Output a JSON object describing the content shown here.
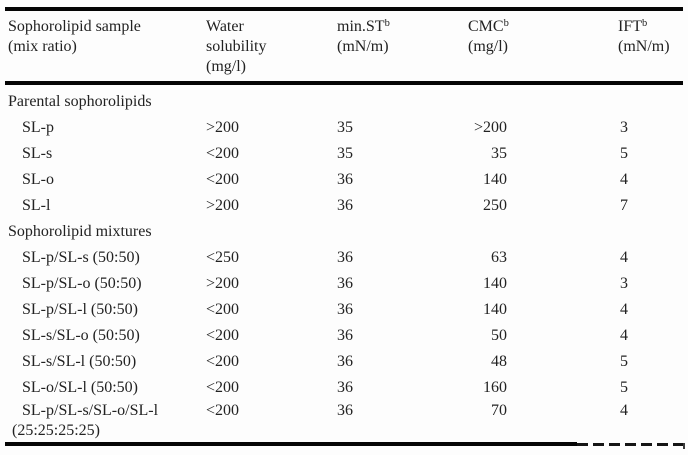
{
  "colors": {
    "text": "#222222",
    "rule": "#050505",
    "background": "#fdfdfd"
  },
  "table": {
    "header": {
      "col1": {
        "line1": "Sophorolipid sample",
        "line2": "(mix ratio)"
      },
      "col2": {
        "line1": "Water",
        "line2": "solubility",
        "line3": "(mg/l)"
      },
      "col3": {
        "name": "min.ST",
        "sup": "b",
        "unit": "(mN/m)"
      },
      "col4": {
        "name": "CMC",
        "sup": "b",
        "unit": "(mg/l)"
      },
      "col5": {
        "name": "IFT",
        "sup": "b",
        "unit": "(mN/m)"
      }
    },
    "sections": [
      {
        "title": "Parental sophorolipids",
        "rows": [
          {
            "sample": "SL-p",
            "water_solubility": ">200",
            "min_st": "35",
            "cmc": ">200",
            "ift": "3"
          },
          {
            "sample": "SL-s",
            "water_solubility": "<200",
            "min_st": "35",
            "cmc": "35",
            "ift": "5"
          },
          {
            "sample": "SL-o",
            "water_solubility": "<200",
            "min_st": "36",
            "cmc": "140",
            "ift": "4"
          },
          {
            "sample": "SL-l",
            "water_solubility": ">200",
            "min_st": "36",
            "cmc": "250",
            "ift": "7"
          }
        ]
      },
      {
        "title": "Sophorolipid mixtures",
        "rows": [
          {
            "sample": "SL-p/SL-s (50:50)",
            "water_solubility": "<250",
            "min_st": "36",
            "cmc": "63",
            "ift": "4"
          },
          {
            "sample": "SL-p/SL-o (50:50)",
            "water_solubility": ">200",
            "min_st": "36",
            "cmc": "140",
            "ift": "3"
          },
          {
            "sample": "SL-p/SL-l (50:50)",
            "water_solubility": "<200",
            "min_st": "36",
            "cmc": "140",
            "ift": "4"
          },
          {
            "sample": "SL-s/SL-o (50:50)",
            "water_solubility": "<200",
            "min_st": "36",
            "cmc": "50",
            "ift": "4"
          },
          {
            "sample": "SL-s/SL-l (50:50)",
            "water_solubility": "<200",
            "min_st": "36",
            "cmc": "48",
            "ift": "5"
          },
          {
            "sample": "SL-o/SL-l (50:50)",
            "water_solubility": "<200",
            "min_st": "36",
            "cmc": "160",
            "ift": "5"
          },
          {
            "sample": "SL-p/SL-s/SL-o/SL-l",
            "sample_line2": "(25:25:25:25)",
            "water_solubility": "<200",
            "min_st": "36",
            "cmc": "70",
            "ift": "4"
          }
        ]
      }
    ]
  }
}
